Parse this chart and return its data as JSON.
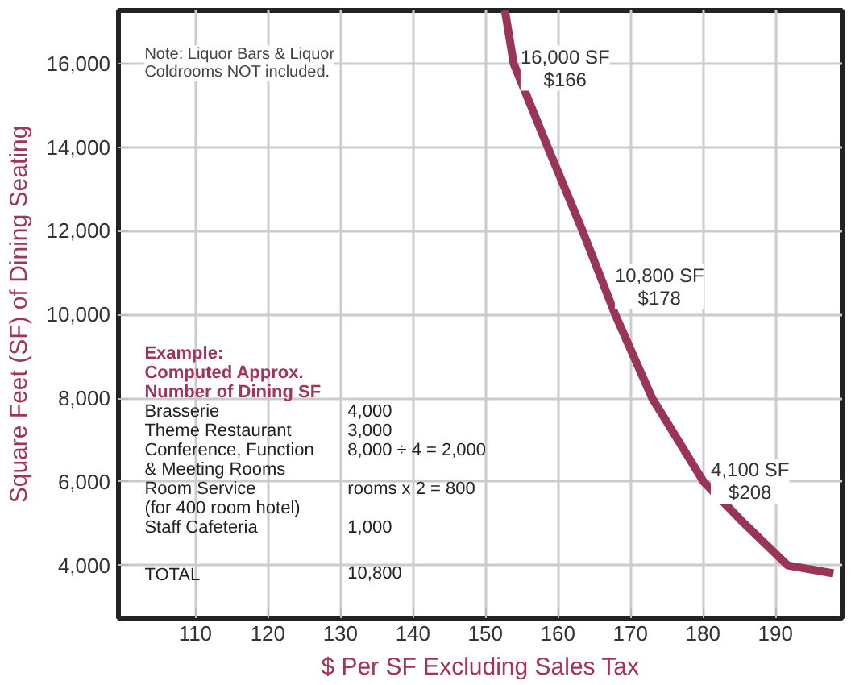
{
  "chart_data": {
    "type": "line",
    "xlabel": "$ Per SF Excluding Sales Tax",
    "ylabel": "Square Feet (SF) of Dining Seating",
    "x": [
      152.7,
      153.9,
      158.6,
      163.4,
      167.9,
      173.0,
      180.1,
      185.7,
      191.7,
      198.0
    ],
    "series": [
      {
        "color": "#993558",
        "values": [
          17270,
          16000,
          14000,
          12000,
          10000,
          8000,
          6000,
          5000,
          4000,
          3810
        ]
      }
    ],
    "xlim": [
      99.4,
      199.2
    ],
    "ylim": [
      2740,
      17270
    ],
    "xticks": [
      110,
      120,
      130,
      140,
      150,
      160,
      170,
      180,
      190
    ],
    "yticks": [
      {
        "value": 4000,
        "label": "4,000"
      },
      {
        "value": 6000,
        "label": "6,000"
      },
      {
        "value": 8000,
        "label": "8,000"
      },
      {
        "value": 10000,
        "label": "10,000"
      },
      {
        "value": 12000,
        "label": "12,000"
      },
      {
        "value": 14000,
        "label": "14,000"
      },
      {
        "value": 16000,
        "label": "16,000"
      }
    ],
    "grid": true,
    "marker": "none",
    "line_style": "solid",
    "annotations": [
      "Note: Liquor Bars & Liquor\nColdrooms NOT included.",
      "16,000 SF\n$166",
      "10,800 SF\n$178",
      "4,100 SF\n$208",
      "Example:\nComputed Approx.\nNumber of Dining SF",
      "Brasserie\nTheme Restaurant\nConference, Function\n  & Meeting Rooms\nRoom Service\n(for 400 room hotel)\nStaff Cafeteria",
      "4,000\n3,000\n8,000 ÷ 4 = 2,000\n\nrooms x 2 = 800\n\n1,000",
      "TOTAL",
      "10,800"
    ]
  }
}
